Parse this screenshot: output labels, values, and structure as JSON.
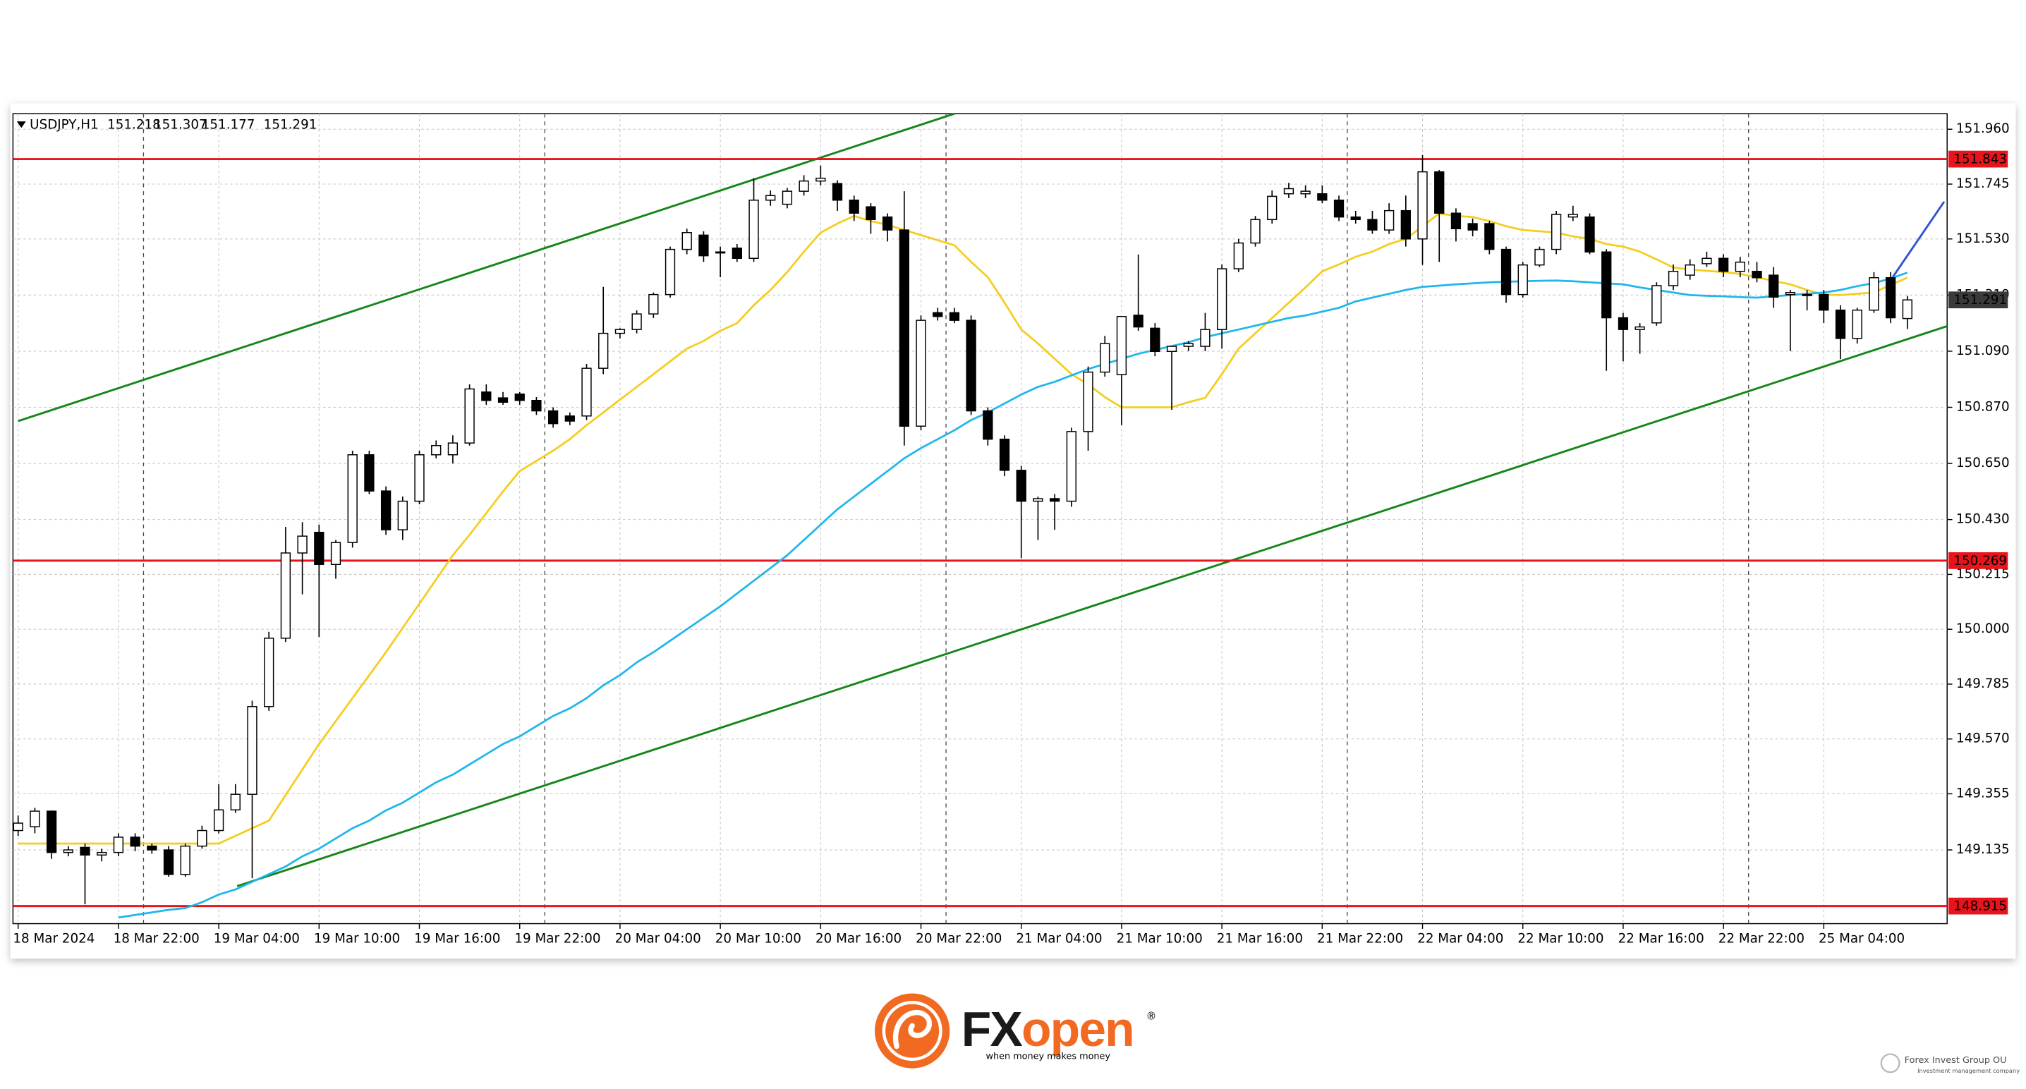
{
  "chart_data": {
    "type": "candlestick",
    "symbol": "USDJPY,H1",
    "header_ohlc": [
      151.218,
      151.307,
      151.177,
      151.291
    ],
    "categories": [
      "18 Mar 2024",
      null,
      null,
      null,
      null,
      null,
      "18 Mar 22:00",
      null,
      null,
      null,
      null,
      null,
      "19 Mar 04:00",
      null,
      null,
      null,
      null,
      null,
      "19 Mar 10:00",
      null,
      null,
      null,
      null,
      null,
      "19 Mar 16:00",
      null,
      null,
      null,
      null,
      null,
      "19 Mar 22:00",
      null,
      null,
      null,
      null,
      null,
      "20 Mar 04:00",
      null,
      null,
      null,
      null,
      null,
      "20 Mar 10:00",
      null,
      null,
      null,
      null,
      null,
      "20 Mar 16:00",
      null,
      null,
      null,
      null,
      null,
      "20 Mar 22:00",
      null,
      null,
      null,
      null,
      null,
      "21 Mar 04:00",
      null,
      null,
      null,
      null,
      null,
      "21 Mar 10:00",
      null,
      null,
      null,
      null,
      null,
      "21 Mar 16:00",
      null,
      null,
      null,
      null,
      null,
      "21 Mar 22:00",
      null,
      null,
      null,
      null,
      null,
      "22 Mar 04:00",
      null,
      null,
      null,
      null,
      null,
      "22 Mar 10:00",
      null,
      null,
      null,
      null,
      null,
      "22 Mar 16:00",
      null,
      null,
      null,
      null,
      null,
      "22 Mar 22:00",
      null,
      null,
      null,
      null,
      null,
      "25 Mar 04:00",
      null,
      null,
      null,
      null,
      null
    ],
    "open": [
      149.211,
      149.226,
      149.287,
      149.125,
      149.145,
      149.115,
      149.125,
      149.185,
      149.15,
      149.135,
      149.039,
      149.15,
      149.211,
      149.292,
      149.353,
      149.697,
      149.965,
      150.299,
      150.38,
      150.254,
      150.34,
      150.684,
      150.542,
      150.39,
      150.502,
      150.684,
      150.684,
      150.73,
      150.93,
      150.907,
      150.922,
      150.897,
      150.856,
      150.836,
      150.836,
      151.023,
      151.16,
      151.175,
      151.236,
      151.312,
      151.489,
      151.545,
      151.479,
      151.494,
      151.454,
      151.682,
      151.666,
      151.717,
      151.757,
      151.747,
      151.682,
      151.656,
      151.616,
      151.565,
      150.796,
      151.241,
      151.241,
      151.211,
      150.856,
      150.745,
      150.623,
      150.502,
      150.512,
      150.502,
      150.775,
      151.008,
      150.998,
      151.231,
      151.18,
      151.089,
      151.109,
      151.109,
      151.175,
      151.413,
      151.514,
      151.606,
      151.707,
      151.707,
      151.707,
      151.682,
      151.616,
      151.606,
      151.565,
      151.641,
      151.53,
      151.793,
      151.631,
      151.59,
      151.59,
      151.489,
      151.312,
      151.428,
      151.489,
      151.616,
      151.616,
      151.479,
      151.221,
      151.175,
      151.201,
      151.347,
      151.388,
      151.433,
      151.454,
      151.403,
      151.403,
      151.388,
      151.312,
      151.312,
      151.312,
      151.251,
      151.14,
      151.251,
      151.378,
      151.218
    ],
    "high": [
      149.27,
      149.3,
      149.29,
      149.15,
      149.16,
      149.14,
      149.2,
      149.2,
      149.16,
      149.15,
      149.16,
      149.23,
      149.393,
      149.393,
      149.72,
      149.99,
      150.401,
      150.42,
      150.41,
      150.35,
      150.7,
      150.7,
      150.56,
      150.52,
      150.7,
      150.74,
      150.76,
      150.96,
      150.96,
      150.93,
      150.93,
      150.91,
      150.87,
      150.85,
      151.04,
      151.342,
      151.18,
      151.25,
      151.32,
      151.5,
      151.57,
      151.56,
      151.5,
      151.51,
      151.768,
      151.72,
      151.73,
      151.78,
      151.818,
      151.76,
      151.7,
      151.67,
      151.63,
      151.717,
      151.23,
      151.26,
      151.26,
      151.23,
      150.87,
      150.76,
      150.64,
      150.52,
      150.53,
      150.79,
      151.03,
      151.15,
      151.226,
      151.469,
      151.2,
      151.11,
      151.13,
      151.24,
      151.43,
      151.53,
      151.62,
      151.72,
      151.75,
      151.74,
      151.74,
      151.7,
      151.64,
      151.64,
      151.67,
      151.7,
      151.859,
      151.8,
      151.65,
      151.61,
      151.6,
      151.5,
      151.44,
      151.5,
      151.64,
      151.66,
      151.63,
      151.49,
      151.24,
      151.2,
      151.36,
      151.43,
      151.45,
      151.48,
      151.47,
      151.46,
      151.44,
      151.42,
      151.33,
      151.33,
      151.33,
      151.27,
      151.26,
      151.4,
      151.4,
      151.307
    ],
    "low": [
      149.19,
      149.2,
      149.1,
      149.11,
      148.922,
      149.09,
      149.11,
      149.13,
      149.12,
      149.03,
      149.03,
      149.14,
      149.2,
      149.28,
      149.024,
      149.68,
      149.95,
      150.137,
      149.97,
      150.198,
      150.32,
      150.53,
      150.37,
      150.35,
      150.49,
      150.67,
      150.65,
      150.72,
      150.88,
      150.88,
      150.88,
      150.84,
      150.79,
      150.8,
      150.82,
      151.0,
      151.14,
      151.16,
      151.22,
      151.3,
      151.47,
      151.44,
      151.38,
      151.44,
      151.44,
      151.66,
      151.65,
      151.7,
      151.74,
      151.64,
      151.6,
      151.55,
      151.52,
      150.72,
      150.78,
      151.21,
      151.2,
      150.84,
      150.72,
      150.6,
      150.279,
      150.35,
      150.39,
      150.48,
      150.7,
      150.99,
      150.8,
      151.17,
      151.07,
      150.86,
      151.09,
      151.09,
      151.1,
      151.4,
      151.5,
      151.59,
      151.69,
      151.69,
      151.67,
      151.6,
      151.59,
      151.55,
      151.55,
      151.5,
      151.428,
      151.44,
      151.52,
      151.54,
      151.47,
      151.28,
      151.3,
      151.42,
      151.47,
      151.6,
      151.47,
      151.013,
      151.05,
      151.08,
      151.19,
      151.33,
      151.37,
      151.42,
      151.38,
      151.38,
      151.36,
      151.26,
      151.09,
      151.25,
      151.2,
      151.059,
      151.12,
      151.24,
      151.2,
      151.177
    ],
    "close": [
      149.24,
      149.287,
      149.125,
      149.135,
      149.115,
      149.125,
      149.185,
      149.15,
      149.135,
      149.039,
      149.15,
      149.211,
      149.292,
      149.353,
      149.697,
      149.965,
      150.299,
      150.365,
      150.254,
      150.34,
      150.684,
      150.542,
      150.39,
      150.502,
      150.684,
      150.72,
      150.73,
      150.942,
      150.897,
      150.89,
      150.897,
      150.856,
      150.806,
      150.816,
      151.023,
      151.16,
      151.175,
      151.236,
      151.312,
      151.489,
      151.555,
      151.464,
      151.475,
      151.454,
      151.682,
      151.7,
      151.717,
      151.757,
      151.768,
      151.682,
      151.631,
      151.606,
      151.565,
      150.796,
      151.211,
      151.226,
      151.211,
      150.856,
      150.745,
      150.623,
      150.502,
      150.512,
      150.502,
      150.775,
      151.008,
      151.12,
      151.226,
      151.185,
      151.089,
      151.109,
      151.12,
      151.175,
      151.413,
      151.514,
      151.606,
      151.697,
      151.727,
      151.717,
      151.682,
      151.616,
      151.606,
      151.565,
      151.641,
      151.53,
      151.793,
      151.631,
      151.57,
      151.565,
      151.489,
      151.312,
      151.428,
      151.489,
      151.626,
      151.626,
      151.479,
      151.221,
      151.175,
      151.185,
      151.347,
      151.403,
      151.428,
      151.454,
      151.403,
      151.439,
      151.378,
      151.302,
      151.32,
      151.31,
      151.251,
      151.14,
      151.251,
      151.378,
      151.221,
      151.291
    ],
    "up_color": "#ffffff",
    "down_color": "#000000",
    "moving_averages": [
      {
        "color": "#f5cd1e",
        "values": [
          149.16,
          149.16,
          149.16,
          149.16,
          149.16,
          149.16,
          149.16,
          149.16,
          149.16,
          149.16,
          149.16,
          149.16,
          149.16,
          149.19,
          149.22,
          149.25,
          149.35,
          149.45,
          149.55,
          149.64,
          149.73,
          149.82,
          149.91,
          150.005,
          150.1,
          150.195,
          150.29,
          150.37,
          150.455,
          150.54,
          150.62,
          150.66,
          150.7,
          150.745,
          150.8,
          150.85,
          150.9,
          150.95,
          151.0,
          151.05,
          151.1,
          151.13,
          151.17,
          151.2,
          151.27,
          151.33,
          151.4,
          151.48,
          151.555,
          151.59,
          151.62,
          151.6,
          151.585,
          151.565,
          151.545,
          151.525,
          151.505,
          151.44,
          151.38,
          151.28,
          151.175,
          151.12,
          151.06,
          151.0,
          150.96,
          150.91,
          150.87,
          150.87,
          150.87,
          150.87,
          150.89,
          150.907,
          151.0,
          151.1,
          151.16,
          151.22,
          151.28,
          151.34,
          151.403,
          151.43,
          151.46,
          151.48,
          151.51,
          151.53,
          151.58,
          151.63,
          151.62,
          151.616,
          151.6,
          151.58,
          151.565,
          151.56,
          151.555,
          151.54,
          151.53,
          151.51,
          151.5,
          151.48,
          151.45,
          151.418,
          151.41,
          151.405,
          151.4,
          151.393,
          151.38,
          151.365,
          151.352,
          151.33,
          151.312,
          151.31,
          151.315,
          151.32,
          151.35,
          151.378
        ]
      },
      {
        "color": "#1fb6ec",
        "values": [
          null,
          null,
          null,
          null,
          null,
          null,
          148.87,
          148.88,
          148.89,
          148.9,
          148.907,
          148.93,
          148.96,
          148.98,
          149.01,
          149.04,
          149.07,
          149.11,
          149.14,
          149.18,
          149.22,
          149.25,
          149.29,
          149.32,
          149.36,
          149.4,
          149.43,
          149.47,
          149.51,
          149.55,
          149.58,
          149.62,
          149.66,
          149.69,
          149.73,
          149.78,
          149.82,
          149.87,
          149.91,
          149.955,
          150.0,
          150.045,
          150.09,
          150.14,
          150.19,
          150.24,
          150.29,
          150.35,
          150.41,
          150.47,
          150.52,
          150.57,
          150.62,
          150.67,
          150.71,
          150.745,
          150.78,
          150.82,
          150.85,
          150.885,
          150.92,
          150.95,
          150.97,
          150.995,
          151.02,
          151.04,
          151.06,
          151.08,
          151.095,
          151.11,
          151.125,
          151.145,
          151.16,
          151.175,
          151.19,
          151.205,
          151.22,
          151.23,
          151.245,
          151.26,
          151.285,
          151.3,
          151.315,
          151.33,
          151.342,
          151.347,
          151.352,
          151.356,
          151.36,
          151.362,
          151.364,
          151.366,
          151.367,
          151.364,
          151.36,
          151.356,
          151.352,
          151.34,
          151.33,
          151.32,
          151.31,
          151.307,
          151.305,
          151.302,
          151.3,
          151.305,
          151.31,
          151.315,
          151.32,
          151.33,
          151.345,
          151.357,
          151.375,
          151.398
        ]
      }
    ],
    "trendlines": [
      {
        "color": "#17861a",
        "x": [
          0,
          56
        ],
        "y": [
          150.816,
          152.021
        ]
      },
      {
        "color": "#17861a",
        "x": [
          13.1,
          115.7
        ],
        "y": [
          148.993,
          151.195
        ]
      },
      {
        "color": "#2f55d6",
        "x": [
          112.1,
          115.2
        ],
        "y": [
          151.378,
          151.676
        ]
      }
    ],
    "levels": [
      {
        "value": 151.843,
        "color": "#e8141c"
      },
      {
        "value": 150.269,
        "color": "#e8141c"
      },
      {
        "value": 148.915,
        "color": "#e8141c"
      }
    ],
    "last_price": 151.291,
    "ylim": [
      148.846,
      152.021
    ],
    "yticks": [
      {
        "value": 151.96,
        "label": "151.960"
      },
      151.745,
      {
        "value": 151.53,
        "label": "151.530"
      },
      {
        "value": 151.31,
        "label": "151.310"
      },
      {
        "value": 151.09,
        "label": "151.090"
      },
      {
        "value": 150.87,
        "label": "150.870"
      },
      {
        "value": 150.65,
        "label": "150.650"
      },
      {
        "value": 150.43,
        "label": "150.430"
      },
      150.215,
      {
        "value": 150,
        "label": "150.000"
      },
      149.785,
      {
        "value": 149.57,
        "label": "149.570"
      },
      149.355,
      149.135
    ],
    "grid": true
  },
  "footer": {
    "brand_dark": "FX",
    "brand_orange": "open",
    "registered": "®",
    "tagline": "when money makes money",
    "company": "Forex Invest Group OU",
    "company_sub": "Investment management company"
  }
}
